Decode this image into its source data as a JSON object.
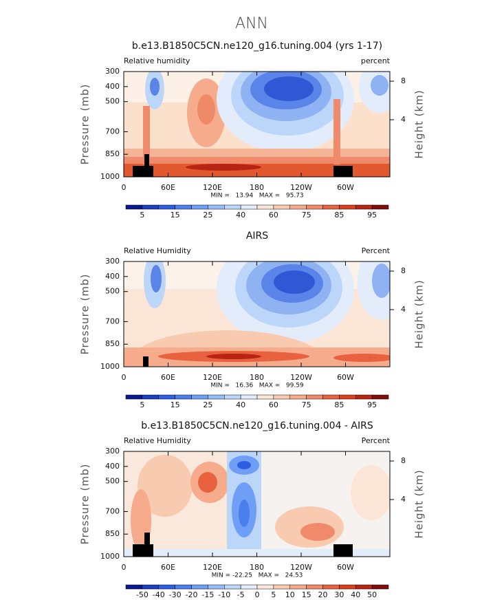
{
  "figure_title": "ANN",
  "chart_data": [
    {
      "type": "contour",
      "title": "b.e13.B1850C5CN.ne120_g16.tuning.004 (yrs 1-17)",
      "left_label": "Relative humidity",
      "right_label": "percent",
      "ylabel": "Pressure (mb)",
      "y2label": "Height (km)",
      "xlim": [
        0,
        360
      ],
      "xticks": [
        0,
        {
          "value": 60,
          "label": "60E"
        },
        {
          "value": 120,
          "label": "120E"
        },
        180,
        {
          "value": 240,
          "label": "120W"
        },
        {
          "value": 300,
          "label": "60W"
        }
      ],
      "ylim": [
        1000,
        300
      ],
      "yticks": [
        300,
        400,
        500,
        700,
        850,
        1000
      ],
      "y2lim": [
        -1.93,
        9
      ],
      "y2ticks": [
        4,
        8
      ],
      "stats": "MIN =   13.94   MAX =   95.73",
      "colorbar": {
        "colors": [
          "#0a1a8c",
          "#1c3fc0",
          "#2e5ee0",
          "#4c7eee",
          "#6e9ef5",
          "#96bdf8",
          "#bcd6fa",
          "#e2ecfb",
          "#fbe5d6",
          "#f8cbb0",
          "#f5ab8c",
          "#f08a6a",
          "#e8623f",
          "#d8401e",
          "#b82414",
          "#800c0c"
        ],
        "labels": [
          5,
          15,
          25,
          40,
          60,
          75,
          85,
          95
        ]
      }
    },
    {
      "type": "contour",
      "title": "AIRS",
      "left_label": "Relative Humidity",
      "right_label": "Percent",
      "ylabel": "Pressure (mb)",
      "y2label": "Height (km)",
      "xlim": [
        0,
        360
      ],
      "xticks": [
        0,
        {
          "value": 60,
          "label": "60E"
        },
        {
          "value": 120,
          "label": "120E"
        },
        180,
        {
          "value": 240,
          "label": "120W"
        },
        {
          "value": 300,
          "label": "60W"
        }
      ],
      "ylim": [
        1000,
        300
      ],
      "yticks": [
        300,
        400,
        500,
        700,
        850,
        1000
      ],
      "y2lim": [
        -1.93,
        9
      ],
      "y2ticks": [
        4,
        8
      ],
      "stats": "MIN =   16.36   MAX =   99.59",
      "colorbar": {
        "colors": [
          "#0a1a8c",
          "#1c3fc0",
          "#2e5ee0",
          "#4c7eee",
          "#6e9ef5",
          "#96bdf8",
          "#bcd6fa",
          "#e2ecfb",
          "#fbe5d6",
          "#f8cbb0",
          "#f5ab8c",
          "#f08a6a",
          "#e8623f",
          "#d8401e",
          "#b82414",
          "#800c0c"
        ],
        "labels": [
          5,
          15,
          25,
          40,
          60,
          75,
          85,
          95
        ]
      }
    },
    {
      "type": "contour",
      "title": "b.e13.B1850C5CN.ne120_g16.tuning.004 - AIRS",
      "left_label": "Relative Humidity",
      "right_label": "Percent",
      "ylabel": "Pressure (mb)",
      "y2label": "Height (km)",
      "xlim": [
        0,
        360
      ],
      "xticks": [
        0,
        {
          "value": 60,
          "label": "60E"
        },
        {
          "value": 120,
          "label": "120E"
        },
        180,
        {
          "value": 240,
          "label": "120W"
        },
        {
          "value": 300,
          "label": "60W"
        }
      ],
      "ylim": [
        1000,
        300
      ],
      "yticks": [
        300,
        400,
        500,
        700,
        850,
        1000
      ],
      "y2lim": [
        -1.93,
        9
      ],
      "y2ticks": [
        4,
        8
      ],
      "stats": "MIN = -22.25   MAX =   24.53",
      "colorbar": {
        "colors": [
          "#0a1a8c",
          "#1c3fc0",
          "#2e5ee0",
          "#4c7eee",
          "#6e9ef5",
          "#96bdf8",
          "#bcd6fa",
          "#e2ecfb",
          "#fbe8dc",
          "#f8cbb0",
          "#f5ab8c",
          "#f08a6a",
          "#e8623f",
          "#d8401e",
          "#b82414",
          "#800c0c"
        ],
        "labels": [
          -50,
          -40,
          -30,
          -20,
          -15,
          -10,
          -5,
          0,
          5,
          10,
          15,
          20,
          30,
          40,
          50
        ]
      }
    }
  ]
}
